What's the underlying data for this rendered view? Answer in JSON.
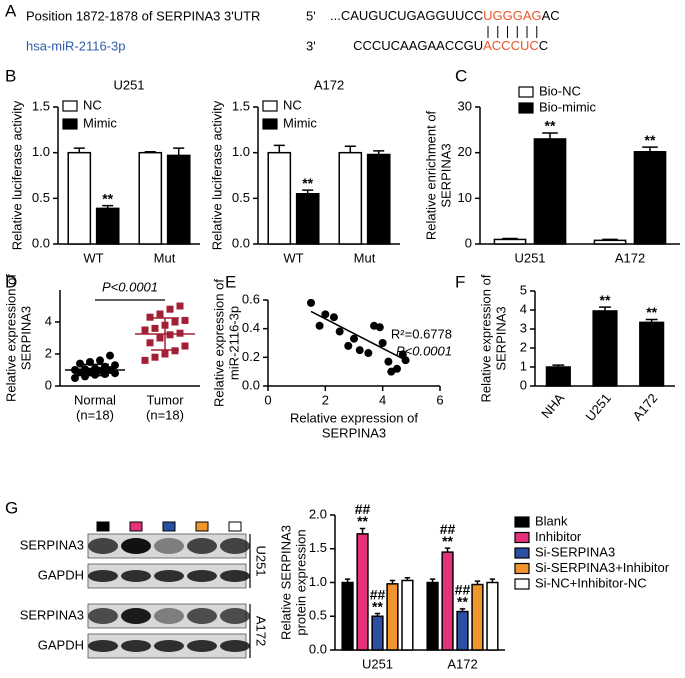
{
  "panel_labels": [
    "A",
    "B",
    "C",
    "D",
    "E",
    "F",
    "G"
  ],
  "sequence": {
    "utr_label": "Position 1872-1878 of SERPINA3 3'UTR",
    "utr_end": "5'",
    "utr_seq": [
      "...CAUGUCUGAGGUUCC",
      "UGGGAG",
      "AC"
    ],
    "mirna_label": "hsa-miR-2116-3p",
    "mirna_end": "3'",
    "mirna_seq": [
      "CCCUCAAGAACCGU",
      "ACCCUC",
      "C"
    ]
  },
  "blot": {
    "rows": [
      "SERPINA3",
      "GAPDH",
      "SERPINA3",
      "GAPDH"
    ],
    "cells": [
      "U251",
      "A172"
    ]
  },
  "chart_data": [
    {
      "type": "bar",
      "title": "U251",
      "ylabel": [
        "Relative luciferase activity"
      ],
      "categories": [
        "WT",
        "Mut"
      ],
      "series": [
        {
          "name": "NC",
          "color": "#ffffff",
          "values": [
            1.0,
            1.0
          ],
          "errors": [
            0.05,
            0.01
          ]
        },
        {
          "name": "Mimic",
          "color": "#000000",
          "values": [
            0.39,
            0.97
          ],
          "errors": [
            0.03,
            0.08
          ],
          "labels": [
            [
              "**"
            ],
            null
          ]
        }
      ],
      "ylim": [
        0,
        1.5
      ],
      "yticks": [
        {
          "value": 0,
          "label": "0.0"
        },
        {
          "value": 0.5,
          "label": "0.5"
        },
        {
          "value": 1,
          "label": "1.0"
        },
        {
          "value": 1.5,
          "label": "1.5"
        }
      ]
    },
    {
      "type": "bar",
      "title": "A172",
      "ylabel": [
        "Relative luciferase activity"
      ],
      "categories": [
        "WT",
        "Mut"
      ],
      "series": [
        {
          "name": "NC",
          "color": "#ffffff",
          "values": [
            1.0,
            1.0
          ],
          "errors": [
            0.08,
            0.07
          ]
        },
        {
          "name": "Mimic",
          "color": "#000000",
          "values": [
            0.55,
            0.98
          ],
          "errors": [
            0.04,
            0.04
          ],
          "labels": [
            [
              "**"
            ],
            null
          ]
        }
      ],
      "ylim": [
        0,
        1.5
      ],
      "yticks": [
        {
          "value": 0,
          "label": "0.0"
        },
        {
          "value": 0.5,
          "label": "0.5"
        },
        {
          "value": 1,
          "label": "1.0"
        },
        {
          "value": 1.5,
          "label": "1.5"
        }
      ]
    },
    {
      "type": "bar",
      "ylabel": [
        "Relative enrichment of",
        "SERPINA3"
      ],
      "categories": [
        "U251",
        "A172"
      ],
      "series": [
        {
          "name": "Bio-NC",
          "color": "#ffffff",
          "values": [
            1.0,
            0.8
          ],
          "errors": [
            0.2,
            0.2
          ]
        },
        {
          "name": "Bio-mimic",
          "color": "#000000",
          "values": [
            23,
            20.2
          ],
          "errors": [
            1.3,
            1.0
          ],
          "labels": [
            [
              "**"
            ],
            [
              "**"
            ]
          ]
        }
      ],
      "ylim": [
        0,
        30
      ],
      "yticks": [
        0,
        10,
        20,
        30
      ]
    },
    {
      "type": "strip",
      "ylabel": [
        "Relative expression of",
        "SERPINA3"
      ],
      "categories": [
        "Normal",
        "Tumor"
      ],
      "category_notes": [
        "(n=18)",
        "(n=18)"
      ],
      "groups": [
        {
          "color": "#000000",
          "values": [
            0.5,
            0.6,
            0.7,
            0.75,
            0.8,
            0.85,
            0.9,
            0.95,
            1.0,
            1.0,
            1.05,
            1.1,
            1.2,
            1.3,
            1.4,
            1.5,
            1.6,
            1.9
          ]
        },
        {
          "color": "#a31f34",
          "values": [
            1.6,
            1.8,
            2.0,
            2.2,
            2.5,
            2.7,
            3.0,
            3.2,
            3.3,
            3.5,
            3.6,
            3.8,
            4.0,
            4.1,
            4.3,
            4.5,
            4.8,
            5.0
          ]
        }
      ],
      "mean": [
        1.0,
        3.25
      ],
      "sd": [
        0.35,
        1.0
      ],
      "annotation": "P<0.0001",
      "ylim": [
        0,
        6
      ],
      "yticks": [
        0,
        2,
        4
      ]
    },
    {
      "type": "scatter",
      "xlabel": [
        "Relative expression of",
        "SERPINA3"
      ],
      "ylabel": [
        "Relative expression of",
        "miR-2116-3p"
      ],
      "x": [
        1.5,
        2.0,
        2.3,
        1.8,
        2.5,
        3.0,
        2.8,
        3.2,
        3.7,
        3.9,
        3.5,
        4.0,
        4.2,
        4.5,
        4.7,
        4.3,
        4.8
      ],
      "values": [
        0.58,
        0.5,
        0.48,
        0.42,
        0.38,
        0.33,
        0.28,
        0.25,
        0.42,
        0.41,
        0.23,
        0.3,
        0.17,
        0.12,
        0.22,
        0.1,
        0.18
      ],
      "fit": {
        "x": [
          1.5,
          4.9
        ],
        "y": [
          0.52,
          0.17
        ]
      },
      "annotations": [
        "R²=0.6778",
        "P<0.0001"
      ],
      "xlim": [
        0,
        6
      ],
      "xticks": [
        0,
        2,
        4,
        6
      ],
      "ylim": [
        0,
        0.6
      ],
      "yticks": [
        {
          "value": 0,
          "label": "0.0"
        },
        {
          "value": 0.2,
          "label": "0.2"
        },
        {
          "value": 0.4,
          "label": "0.4"
        },
        {
          "value": 0.6,
          "label": "0.6"
        }
      ]
    },
    {
      "type": "bar",
      "ylabel": [
        "Relative expression of",
        "SERPINA3"
      ],
      "categories": [
        "NHA",
        "U251",
        "A172"
      ],
      "color": "#000000",
      "values": [
        1.0,
        3.95,
        3.35
      ],
      "errors": [
        0.1,
        0.2,
        0.15
      ],
      "labels": [
        null,
        [
          "**"
        ],
        [
          "**"
        ]
      ],
      "ylim": [
        0,
        5
      ],
      "yticks": [
        0,
        1,
        2,
        3,
        4,
        5
      ]
    },
    {
      "type": "bar",
      "ylabel": [
        "Relative SERPINA3",
        "protein expression"
      ],
      "categories": [
        "U251",
        "A172"
      ],
      "series": [
        {
          "name": "Blank",
          "color": "#000000",
          "values": [
            1.0,
            1.0
          ],
          "errors": [
            0.05,
            0.05
          ]
        },
        {
          "name": "Inhibitor",
          "color": "#e5307a",
          "values": [
            1.72,
            1.45
          ],
          "errors": [
            0.08,
            0.06
          ],
          "labels": [
            [
              "##",
              "**"
            ],
            [
              "##",
              "**"
            ]
          ]
        },
        {
          "name": "Si-SERPINA3",
          "color": "#2a4fa3",
          "values": [
            0.5,
            0.57
          ],
          "errors": [
            0.04,
            0.04
          ],
          "labels": [
            [
              "##",
              "**"
            ],
            [
              "##",
              "**"
            ]
          ]
        },
        {
          "name": "Si-SERPINA3+Inhibitor",
          "color": "#f0952e",
          "values": [
            0.98,
            0.97
          ],
          "errors": [
            0.05,
            0.05
          ]
        },
        {
          "name": "Si-NC+Inhibitor-NC",
          "color": "#ffffff",
          "values": [
            1.03,
            1.0
          ],
          "errors": [
            0.04,
            0.05
          ]
        }
      ],
      "ylim": [
        0,
        2
      ],
      "yticks": [
        {
          "value": 0,
          "label": "0.0"
        },
        {
          "value": 0.5,
          "label": "0.5"
        },
        {
          "value": 1,
          "label": "1.0"
        },
        {
          "value": 1.5,
          "label": "1.5"
        },
        {
          "value": 2,
          "label": "2.0"
        }
      ]
    }
  ]
}
